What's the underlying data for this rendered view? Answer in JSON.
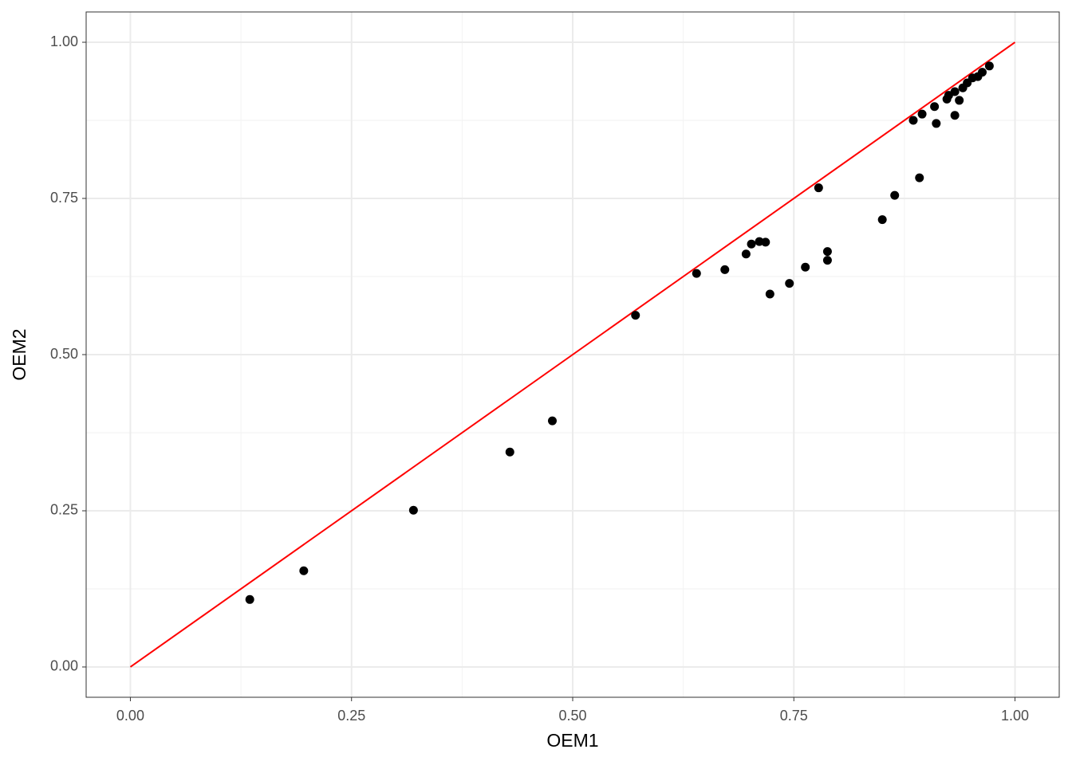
{
  "chart_data": {
    "type": "scatter",
    "x_label": "OEM1",
    "y_label": "OEM2",
    "xlim": [
      -0.05,
      1.05
    ],
    "ylim": [
      -0.0485,
      1.0485
    ],
    "xticks": [
      {
        "value": 0,
        "label": "0.00"
      },
      {
        "value": 0.25,
        "label": "0.25"
      },
      {
        "value": 0.5,
        "label": "0.50"
      },
      {
        "value": 0.75,
        "label": "0.75"
      },
      {
        "value": 1,
        "label": "1.00"
      }
    ],
    "yticks": [
      {
        "value": 0,
        "label": "0.00"
      },
      {
        "value": 0.25,
        "label": "0.25"
      },
      {
        "value": 0.5,
        "label": "0.50"
      },
      {
        "value": 0.75,
        "label": "0.75"
      },
      {
        "value": 1,
        "label": "1.00"
      }
    ],
    "minor_ticks": [
      0.125,
      0.375,
      0.625,
      0.875
    ],
    "grid": true,
    "color": "#000000",
    "reference_line": {
      "x": [
        0,
        1
      ],
      "y": [
        0,
        1
      ],
      "color": "#ff0000"
    },
    "x": [
      0.135,
      0.196,
      0.32,
      0.429,
      0.477,
      0.571,
      0.64,
      0.672,
      0.696,
      0.702,
      0.711,
      0.718,
      0.723,
      0.745,
      0.763,
      0.778,
      0.788,
      0.788,
      0.85,
      0.864,
      0.885,
      0.892,
      0.895,
      0.909,
      0.911,
      0.923,
      0.925,
      0.932,
      0.932,
      0.937,
      0.941,
      0.946,
      0.952,
      0.958,
      0.963,
      0.971
    ],
    "y": [
      0.108,
      0.154,
      0.251,
      0.344,
      0.394,
      0.563,
      0.63,
      0.636,
      0.661,
      0.677,
      0.681,
      0.68,
      0.597,
      0.614,
      0.64,
      0.767,
      0.665,
      0.651,
      0.716,
      0.755,
      0.875,
      0.783,
      0.885,
      0.897,
      0.87,
      0.909,
      0.915,
      0.883,
      0.921,
      0.907,
      0.927,
      0.935,
      0.943,
      0.945,
      0.952,
      0.962
    ]
  }
}
